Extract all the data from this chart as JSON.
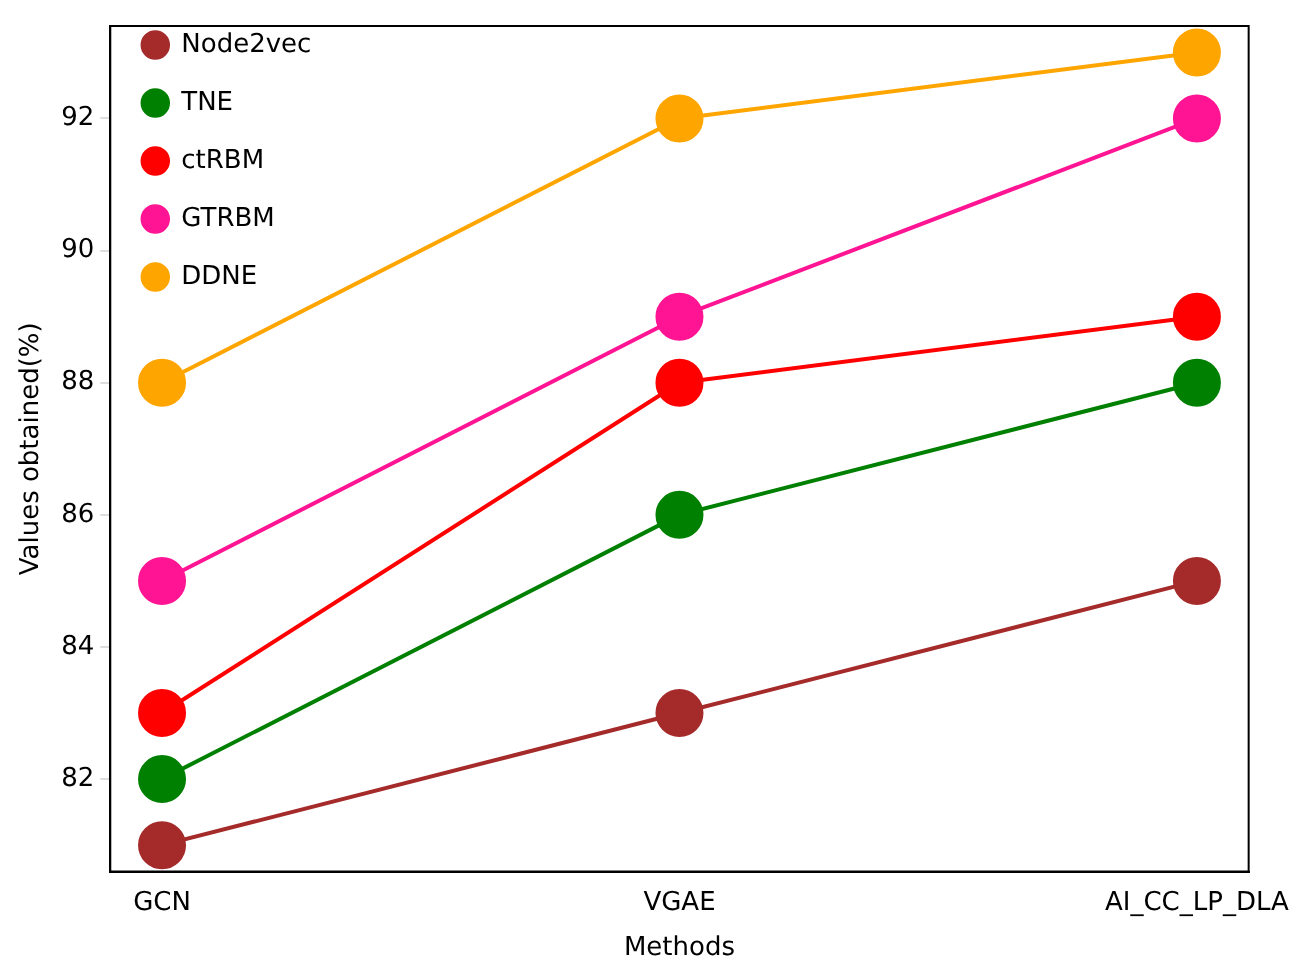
{
  "chart_data": {
    "type": "line",
    "xlabel": "Methods",
    "ylabel": "Values obtained(%)",
    "categories": [
      "GCN",
      "VGAE",
      "AI_CC_LP_DLA"
    ],
    "series": [
      {
        "name": "Node2vec",
        "color": "#a52a2a",
        "values": [
          81,
          83,
          85
        ]
      },
      {
        "name": "TNE",
        "color": "#008000",
        "values": [
          82,
          86,
          88
        ]
      },
      {
        "name": "ctRBM",
        "color": "#ff0000",
        "values": [
          83,
          88,
          89
        ]
      },
      {
        "name": "GTRBM",
        "color": "#ff1493",
        "values": [
          85,
          89,
          92
        ]
      },
      {
        "name": "DDNE",
        "color": "#ffa500",
        "values": [
          88,
          92,
          93
        ]
      }
    ],
    "ylim": [
      80.6,
      93.4
    ],
    "yticks": [
      82,
      84,
      86,
      88,
      90,
      92
    ],
    "grid": false,
    "legend": "top left",
    "marker": "circle",
    "line_style": "solid"
  }
}
